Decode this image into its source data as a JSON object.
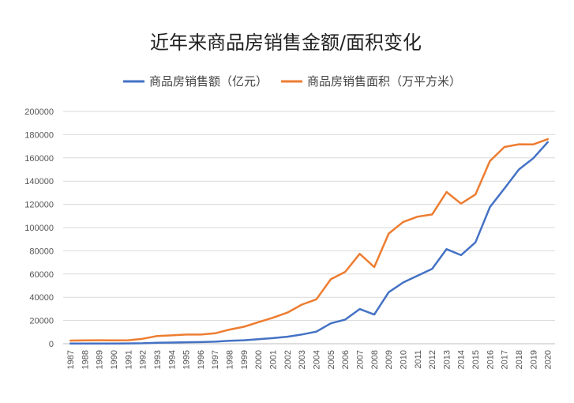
{
  "chart_data": {
    "type": "line",
    "title": "近年来商品房销售金额/面积变化",
    "xlabel": "",
    "ylabel": "",
    "ylim": [
      0,
      200000
    ],
    "yticks": [
      0,
      20000,
      40000,
      60000,
      80000,
      100000,
      120000,
      140000,
      160000,
      180000,
      200000
    ],
    "grid": true,
    "legend_position": "top",
    "categories": [
      "1987",
      "1988",
      "1989",
      "1990",
      "1991",
      "1992",
      "1993",
      "1994",
      "1995",
      "1996",
      "1997",
      "1998",
      "1999",
      "2000",
      "2001",
      "2002",
      "2003",
      "2004",
      "2005",
      "2006",
      "2007",
      "2008",
      "2009",
      "2010",
      "2011",
      "2012",
      "2013",
      "2014",
      "2015",
      "2016",
      "2017",
      "2018",
      "2019",
      "2020"
    ],
    "series": [
      {
        "name": "商品房销售额（亿元）",
        "color": "#4472c4",
        "values": [
          110,
          150,
          160,
          200,
          240,
          430,
          860,
          1020,
          1260,
          1430,
          1800,
          2510,
          2990,
          3940,
          4860,
          6030,
          7960,
          10380,
          17580,
          20830,
          29890,
          25070,
          44360,
          52720,
          58590,
          64460,
          81430,
          76290,
          87280,
          117630,
          133700,
          149970,
          159730,
          173610
        ]
      },
      {
        "name": "商品房销售面积（万平方米）",
        "color": "#ed7d31",
        "values": [
          2700,
          2900,
          3000,
          2900,
          3000,
          4300,
          6700,
          7200,
          7900,
          7900,
          9000,
          12200,
          14600,
          18600,
          22400,
          26800,
          33700,
          38200,
          55500,
          61900,
          77400,
          66000,
          94800,
          104800,
          109400,
          111300,
          130600,
          120600,
          128500,
          157300,
          169400,
          171700,
          171600,
          176100
        ]
      }
    ]
  }
}
